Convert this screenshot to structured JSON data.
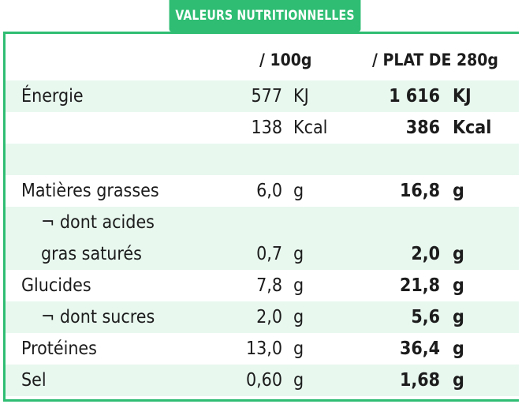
{
  "header": {
    "title": "VALEURS NUTRITIONNELLES",
    "col_100g": "/ 100g",
    "col_plat": "/ PLAT DE 280g"
  },
  "rows": [
    {
      "label": "Énergie",
      "v100": "577",
      "u100": "KJ",
      "vplat": "1 616",
      "uplat": "KJ"
    },
    {
      "label": "",
      "v100": "138",
      "u100": "Kcal",
      "vplat": "386",
      "uplat": "Kcal"
    },
    {
      "label": "",
      "v100": "",
      "u100": "",
      "vplat": "",
      "uplat": ""
    },
    {
      "label": "Matières grasses",
      "v100": "6,0",
      "u100": "g",
      "vplat": "16,8",
      "uplat": "g"
    },
    {
      "label": "¬ dont acides",
      "v100": "",
      "u100": "",
      "vplat": "",
      "uplat": ""
    },
    {
      "label": "gras saturés",
      "v100": "0,7",
      "u100": "g",
      "vplat": "2,0",
      "uplat": "g"
    },
    {
      "label": "Glucides",
      "v100": "7,8",
      "u100": "g",
      "vplat": "21,8",
      "uplat": "g"
    },
    {
      "label": "¬ dont sucres",
      "v100": "2,0",
      "u100": "g",
      "vplat": "5,6",
      "uplat": "g"
    },
    {
      "label": "Protéines",
      "v100": "13,0",
      "u100": "g",
      "vplat": "36,4",
      "uplat": "g"
    },
    {
      "label": "Sel",
      "v100": "0,60",
      "u100": "g",
      "vplat": "1,68",
      "uplat": "g"
    }
  ]
}
